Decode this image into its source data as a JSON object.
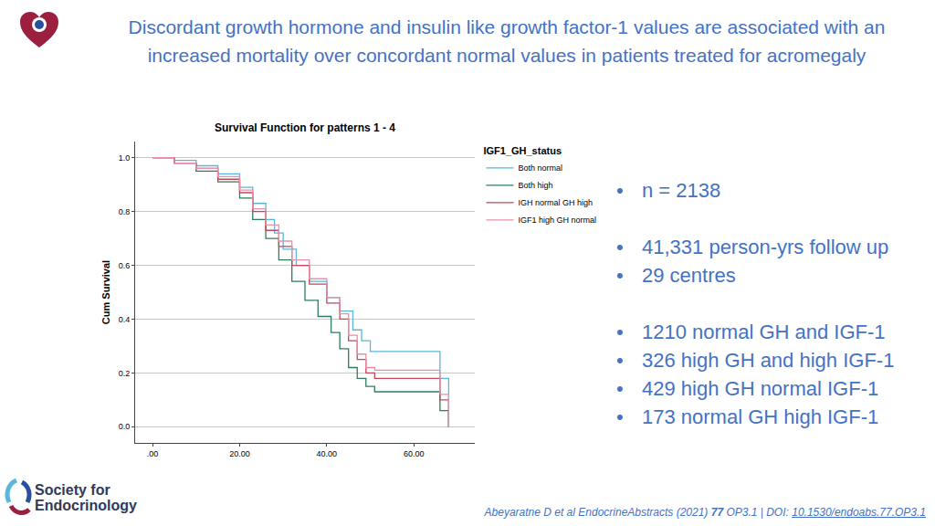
{
  "slide": {
    "title": "Discordant growth hormone and insulin like growth factor-1 values are associated with an increased mortality over concordant normal values in patients treated for acromegaly",
    "bullets": [
      [
        "n = 2138"
      ],
      [
        "41,331 person-yrs follow up",
        "29 centres"
      ],
      [
        "1210 normal GH and IGF-1",
        "326 high GH and high IGF-1",
        "429 high GH normal IGF-1",
        "173 normal GH high IGF-1"
      ]
    ],
    "logo": [
      "Society for",
      "Endocrinology"
    ],
    "citation": [
      {
        "text": "Abeyaratne D et al EndocrineAbstracts (2021) "
      },
      {
        "text": "77",
        "bold": true
      },
      {
        "text": " OP3.1 | DOI: "
      },
      {
        "text": "10.1530/endoabs.77.OP3.1",
        "underline": true
      }
    ]
  },
  "chart_data": {
    "type": "line",
    "line_style": "step",
    "title": "Survival Function for patterns 1 - 4",
    "y_label": "Cum Survival",
    "legend_title": "IGF1_GH_status",
    "legend": "right",
    "grid": true,
    "xlim": [
      -4,
      74
    ],
    "ylim": [
      -0.06,
      1.06
    ],
    "xticks": [
      {
        "value": 0,
        "label": ".00"
      },
      {
        "value": 20,
        "label": "20.00"
      },
      {
        "value": 40,
        "label": "40.00"
      },
      {
        "value": 60,
        "label": "60.00"
      }
    ],
    "yticks": [
      {
        "value": 0,
        "label": "0.0"
      },
      0.2,
      0.4,
      0.6,
      0.8,
      {
        "value": 1,
        "label": "1.0"
      }
    ],
    "series": [
      {
        "name": "Both normal",
        "color": "#5bb6dc",
        "x": [
          0,
          5,
          10,
          15,
          20,
          23,
          26,
          28,
          30,
          33,
          36,
          40,
          43,
          46,
          48,
          50,
          66,
          68,
          68
        ],
        "values": [
          1.0,
          0.99,
          0.97,
          0.94,
          0.89,
          0.83,
          0.77,
          0.72,
          0.66,
          0.6,
          0.54,
          0.48,
          0.43,
          0.36,
          0.32,
          0.28,
          0.18,
          0.18,
          0.0
        ]
      },
      {
        "name": "Both high",
        "color": "#2e7d5b",
        "x": [
          0,
          5,
          10,
          15,
          20,
          23,
          26,
          29,
          32,
          35,
          38,
          41,
          43,
          45,
          47,
          49,
          51,
          66,
          68
        ],
        "values": [
          1.0,
          0.98,
          0.95,
          0.91,
          0.85,
          0.77,
          0.7,
          0.62,
          0.54,
          0.47,
          0.41,
          0.35,
          0.29,
          0.22,
          0.18,
          0.15,
          0.13,
          0.06,
          0.0
        ]
      },
      {
        "name": "IGH normal GH high",
        "color": "#c8455a",
        "x": [
          0,
          5,
          10,
          15,
          20,
          23,
          26,
          29,
          32,
          36,
          40,
          43,
          45,
          47,
          49,
          51,
          66,
          68
        ],
        "values": [
          1.0,
          0.98,
          0.96,
          0.92,
          0.87,
          0.8,
          0.73,
          0.67,
          0.6,
          0.53,
          0.46,
          0.4,
          0.32,
          0.25,
          0.2,
          0.18,
          0.1,
          0.0
        ]
      },
      {
        "name": "IGF1 high GH normal",
        "color": "#ec8fa8",
        "x": [
          0,
          5,
          10,
          15,
          20,
          23,
          26,
          29,
          32,
          36,
          40,
          43,
          45,
          47,
          49,
          51,
          66,
          68
        ],
        "values": [
          1.0,
          0.98,
          0.96,
          0.93,
          0.88,
          0.81,
          0.75,
          0.69,
          0.62,
          0.55,
          0.48,
          0.42,
          0.34,
          0.27,
          0.22,
          0.21,
          0.12,
          0.0
        ]
      }
    ]
  }
}
